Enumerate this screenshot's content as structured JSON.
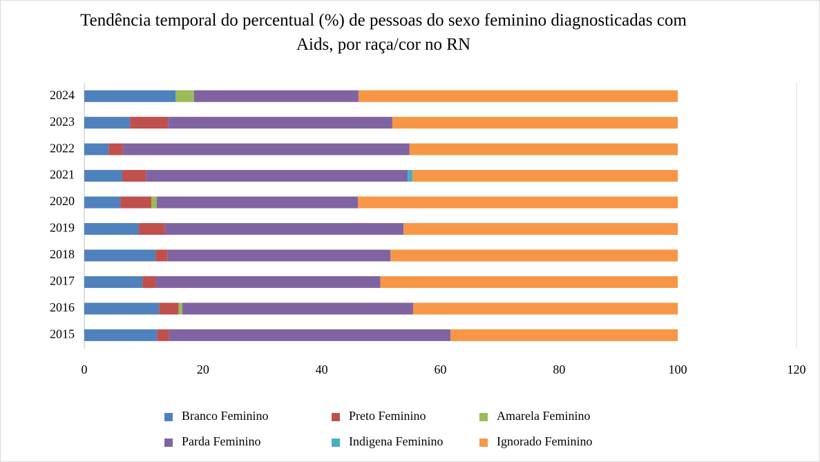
{
  "chart_data": {
    "type": "stacked_barh",
    "title": "Tendência temporal do percentual (%) de pessoas do sexo feminino diagnosticadas com Aids, por raça/cor no RN",
    "categories": [
      "2015",
      "2016",
      "2017",
      "2018",
      "2019",
      "2020",
      "2021",
      "2022",
      "2023",
      "2024"
    ],
    "series": [
      {
        "name": "Branco Feminino",
        "color": "#4f81bd",
        "values": [
          12.3,
          12.6,
          9.8,
          12.0,
          9.2,
          6.1,
          6.4,
          4.1,
          7.7,
          15.4
        ]
      },
      {
        "name": "Preto Feminino",
        "color": "#c0504d",
        "values": [
          2.0,
          3.3,
          2.3,
          2.0,
          4.4,
          5.2,
          4.0,
          2.4,
          6.4,
          0
        ]
      },
      {
        "name": "Amarela Feminino",
        "color": "#9bbb59",
        "values": [
          0,
          0.6,
          0,
          0,
          0,
          0.9,
          0,
          0,
          0,
          3.1
        ]
      },
      {
        "name": "Parda Feminino",
        "color": "#8064a2",
        "values": [
          47.4,
          38.9,
          37.8,
          37.6,
          40.2,
          33.9,
          44.1,
          48.3,
          37.8,
          27.7
        ]
      },
      {
        "name": "Indigena Feminino",
        "color": "#4bacc6",
        "values": [
          0,
          0,
          0,
          0,
          0,
          0,
          0.8,
          0,
          0,
          0
        ]
      },
      {
        "name": "Ignorado Feminino",
        "color": "#f79646",
        "values": [
          38.3,
          44.6,
          50.1,
          48.4,
          46.2,
          53.9,
          44.7,
          45.2,
          48.1,
          53.8
        ]
      }
    ],
    "xlim": [
      0,
      120
    ],
    "xticks": [
      0,
      20,
      40,
      60,
      80,
      100,
      120
    ],
    "grid": false,
    "legend": "bottom"
  }
}
